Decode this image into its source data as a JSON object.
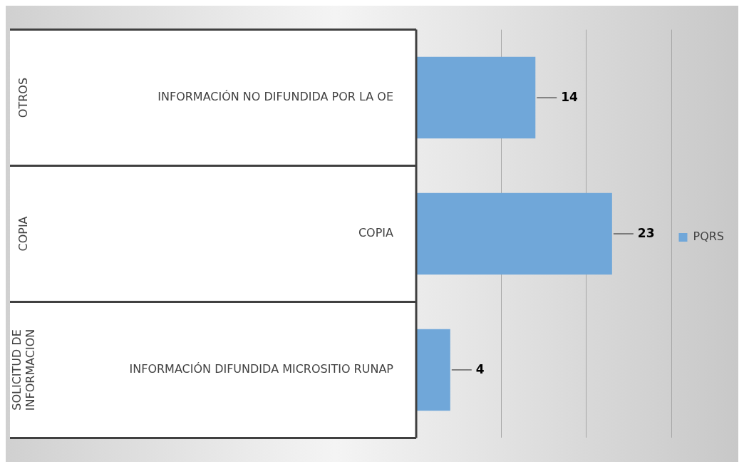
{
  "chart_data": {
    "type": "bar",
    "orientation": "horizontal",
    "categories": [
      "INFORMACIÓN NO DIFUNDIDA POR LA OE",
      "COPIA",
      "INFORMACIÓN DIFUNDIDA MICROSITIO RUNAP"
    ],
    "series": [
      {
        "name": "PQRS",
        "color": "#70a7d9",
        "values": [
          14,
          23,
          4
        ]
      }
    ],
    "xlim": [
      0,
      30
    ],
    "xticks": [
      {
        "value": 0,
        "label": null
      },
      {
        "value": 10,
        "label": null
      },
      {
        "value": 20,
        "label": null
      },
      {
        "value": 30,
        "label": null
      }
    ],
    "grid": "x",
    "tick_labels": "y",
    "legend": "right",
    "data_labels": true,
    "annotations": [
      "OTROS",
      "COPIA",
      "SOLICITUD DE INFORMACION"
    ]
  }
}
